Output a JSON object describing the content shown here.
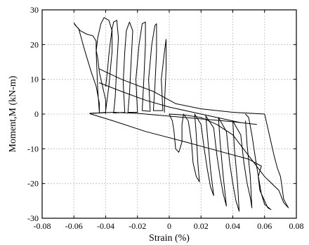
{
  "chart_data": {
    "type": "line",
    "xlabel": "Strain (%)",
    "ylabel": "Moment,M (kN-m)",
    "xlim": [
      -0.08,
      0.08
    ],
    "ylim": [
      -30,
      30
    ],
    "grid": true,
    "x_ticks": [
      "-0.08",
      "-0.06",
      "-0.04",
      "-0.02",
      "0",
      "0.02",
      "0.04",
      "0.06",
      "0.08"
    ],
    "y_ticks": [
      "-30",
      "-20",
      "-10",
      "0",
      "10",
      "20",
      "30"
    ],
    "x_tick_values": [
      -0.08,
      -0.06,
      -0.04,
      -0.02,
      0,
      0.02,
      0.04,
      0.06,
      0.08
    ],
    "y_tick_values": [
      -30,
      -20,
      -10,
      0,
      10,
      20,
      30
    ],
    "series": [
      {
        "values": [
          [
            -0.05,
            0.2
          ],
          [
            -0.045,
            0.3
          ],
          [
            -0.04,
            0.5
          ],
          [
            -0.04,
            4.0
          ],
          [
            -0.044,
            12.0
          ],
          [
            -0.045,
            16.0
          ],
          [
            -0.046,
            18.5
          ],
          [
            -0.046,
            21.0
          ],
          [
            -0.048,
            22.5
          ],
          [
            -0.052,
            23.0
          ],
          [
            -0.056,
            24.0
          ],
          [
            -0.059,
            25.5
          ],
          [
            -0.06,
            26.2
          ],
          [
            -0.058,
            25.0
          ],
          [
            -0.057,
            24.6
          ],
          [
            -0.053,
            18.0
          ],
          [
            -0.049,
            12.0
          ],
          [
            -0.046,
            8.0
          ],
          [
            -0.044,
            3.0
          ],
          [
            -0.044,
            0.4
          ],
          [
            -0.045,
            7.0
          ],
          [
            -0.046,
            18.0
          ],
          [
            -0.045,
            22.0
          ],
          [
            -0.043,
            26.0
          ],
          [
            -0.041,
            27.8
          ],
          [
            -0.038,
            27.0
          ],
          [
            -0.036,
            24.0
          ],
          [
            -0.036,
            18.0
          ],
          [
            -0.038,
            8.0
          ],
          [
            -0.04,
            1.0
          ],
          [
            -0.04,
            0.2
          ]
        ]
      },
      {
        "values": [
          [
            -0.044,
            13.0
          ],
          [
            -0.03,
            10.0
          ],
          [
            -0.01,
            6.5
          ],
          [
            0.004,
            3.0
          ],
          [
            0.02,
            1.5
          ],
          [
            0.04,
            0.5
          ],
          [
            0.06,
            0.0
          ],
          [
            0.062,
            -4.0
          ],
          [
            0.064,
            -8.0
          ],
          [
            0.066,
            -12.0
          ],
          [
            0.068,
            -15.5
          ],
          [
            0.07,
            -18.0
          ],
          [
            0.071,
            -21.0
          ],
          [
            0.072,
            -24.5
          ],
          [
            0.074,
            -26.2
          ],
          [
            0.075,
            -27.0
          ],
          [
            0.072,
            -25.5
          ],
          [
            0.069,
            -22.0
          ],
          [
            0.06,
            -18.0
          ],
          [
            0.05,
            -12.0
          ],
          [
            0.04,
            -6.0
          ],
          [
            0.03,
            -3.0
          ],
          [
            0.02,
            -1.0
          ],
          [
            0.01,
            -0.3
          ],
          [
            0.0,
            0.0
          ]
        ]
      },
      {
        "values": [
          [
            -0.05,
            0.1
          ],
          [
            -0.035,
            -2.0
          ],
          [
            -0.015,
            -5.0
          ],
          [
            0.01,
            -8.0
          ],
          [
            0.03,
            -10.5
          ],
          [
            0.05,
            -13.0
          ],
          [
            0.058,
            -15.0
          ],
          [
            0.056,
            -18.0
          ],
          [
            0.057,
            -22.0
          ],
          [
            0.06,
            -25.0
          ],
          [
            0.062,
            -27.0
          ],
          [
            0.064,
            -27.5
          ],
          [
            0.06,
            -26.0
          ],
          [
            0.058,
            -23.0
          ],
          [
            0.055,
            -15.0
          ],
          [
            0.052,
            -6.0
          ],
          [
            0.05,
            -1.0
          ],
          [
            0.048,
            0.0
          ]
        ]
      },
      {
        "values": [
          [
            -0.04,
            8.0
          ],
          [
            -0.039,
            12.0
          ],
          [
            -0.038,
            17.0
          ],
          [
            -0.037,
            21.0
          ],
          [
            -0.036,
            24.5
          ],
          [
            -0.035,
            26.5
          ],
          [
            -0.033,
            27.0
          ],
          [
            -0.032,
            22.0
          ],
          [
            -0.033,
            14.0
          ],
          [
            -0.034,
            5.0
          ],
          [
            -0.035,
            0.3
          ],
          [
            -0.028,
            0.5
          ],
          [
            -0.029,
            9.0
          ],
          [
            -0.028,
            18.0
          ],
          [
            -0.027,
            24.0
          ],
          [
            -0.025,
            26.5
          ],
          [
            -0.023,
            24.0
          ],
          [
            -0.024,
            15.0
          ],
          [
            -0.025,
            6.0
          ],
          [
            -0.026,
            0.5
          ],
          [
            -0.02,
            0.5
          ],
          [
            -0.021,
            10.0
          ],
          [
            -0.019,
            20.0
          ],
          [
            -0.017,
            26.0
          ],
          [
            -0.015,
            26.5
          ],
          [
            -0.015,
            20.0
          ],
          [
            -0.016,
            10.0
          ],
          [
            -0.017,
            1.0
          ],
          [
            -0.012,
            0.8
          ],
          [
            -0.013,
            10.0
          ],
          [
            -0.011,
            20.0
          ],
          [
            -0.009,
            25.5
          ],
          [
            -0.008,
            26.0
          ],
          [
            -0.008,
            18.0
          ],
          [
            -0.009,
            8.0
          ],
          [
            -0.01,
            1.0
          ],
          [
            -0.004,
            1.0
          ],
          [
            -0.005,
            10.0
          ],
          [
            -0.003,
            18.0
          ],
          [
            -0.002,
            21.5
          ],
          [
            -0.002,
            13.0
          ],
          [
            -0.003,
            3.0
          ],
          [
            -0.003,
            0.5
          ]
        ]
      },
      {
        "values": [
          [
            0.0,
            0.0
          ],
          [
            0.002,
            -2.0
          ],
          [
            0.003,
            -5.0
          ],
          [
            0.004,
            -10.0
          ],
          [
            0.006,
            -11.0
          ],
          [
            0.008,
            -8.0
          ],
          [
            0.008,
            -3.0
          ],
          [
            0.009,
            0.0
          ],
          [
            0.012,
            -2.0
          ],
          [
            0.014,
            -8.0
          ],
          [
            0.015,
            -14.0
          ],
          [
            0.017,
            -18.0
          ],
          [
            0.019,
            -19.5
          ],
          [
            0.018,
            -14.0
          ],
          [
            0.017,
            -6.0
          ],
          [
            0.016,
            0.0
          ],
          [
            0.02,
            -3.0
          ],
          [
            0.022,
            -10.0
          ],
          [
            0.024,
            -16.0
          ],
          [
            0.026,
            -21.0
          ],
          [
            0.028,
            -23.5
          ],
          [
            0.026,
            -16.0
          ],
          [
            0.024,
            -6.0
          ],
          [
            0.023,
            -0.5
          ],
          [
            0.028,
            -4.0
          ],
          [
            0.03,
            -12.0
          ],
          [
            0.032,
            -18.0
          ],
          [
            0.034,
            -23.0
          ],
          [
            0.036,
            -26.5
          ],
          [
            0.034,
            -18.0
          ],
          [
            0.032,
            -8.0
          ],
          [
            0.031,
            -1.0
          ],
          [
            0.036,
            -5.0
          ],
          [
            0.038,
            -14.0
          ],
          [
            0.04,
            -20.0
          ],
          [
            0.042,
            -25.0
          ],
          [
            0.044,
            -28.0
          ],
          [
            0.043,
            -20.0
          ],
          [
            0.041,
            -10.0
          ],
          [
            0.04,
            -2.0
          ],
          [
            0.045,
            -6.0
          ],
          [
            0.047,
            -14.0
          ],
          [
            0.049,
            -20.0
          ],
          [
            0.051,
            -24.0
          ],
          [
            0.052,
            -27.0
          ],
          [
            0.051,
            -18.0
          ],
          [
            0.049,
            -9.0
          ],
          [
            0.048,
            -2.0
          ]
        ]
      },
      {
        "values": [
          [
            -0.05,
            0.2
          ],
          [
            -0.035,
            0.5
          ],
          [
            -0.02,
            0.2
          ],
          [
            -0.005,
            -0.4
          ],
          [
            0.01,
            -1.0
          ],
          [
            0.025,
            -1.6
          ],
          [
            0.04,
            -2.2
          ],
          [
            0.055,
            -3.0
          ]
        ]
      },
      {
        "values": [
          [
            -0.044,
            9.0
          ],
          [
            -0.03,
            6.5
          ],
          [
            -0.015,
            4.0
          ],
          [
            0.0,
            2.0
          ],
          [
            0.015,
            0.5
          ],
          [
            0.03,
            -1.0
          ],
          [
            0.045,
            -2.5
          ]
        ]
      }
    ]
  }
}
